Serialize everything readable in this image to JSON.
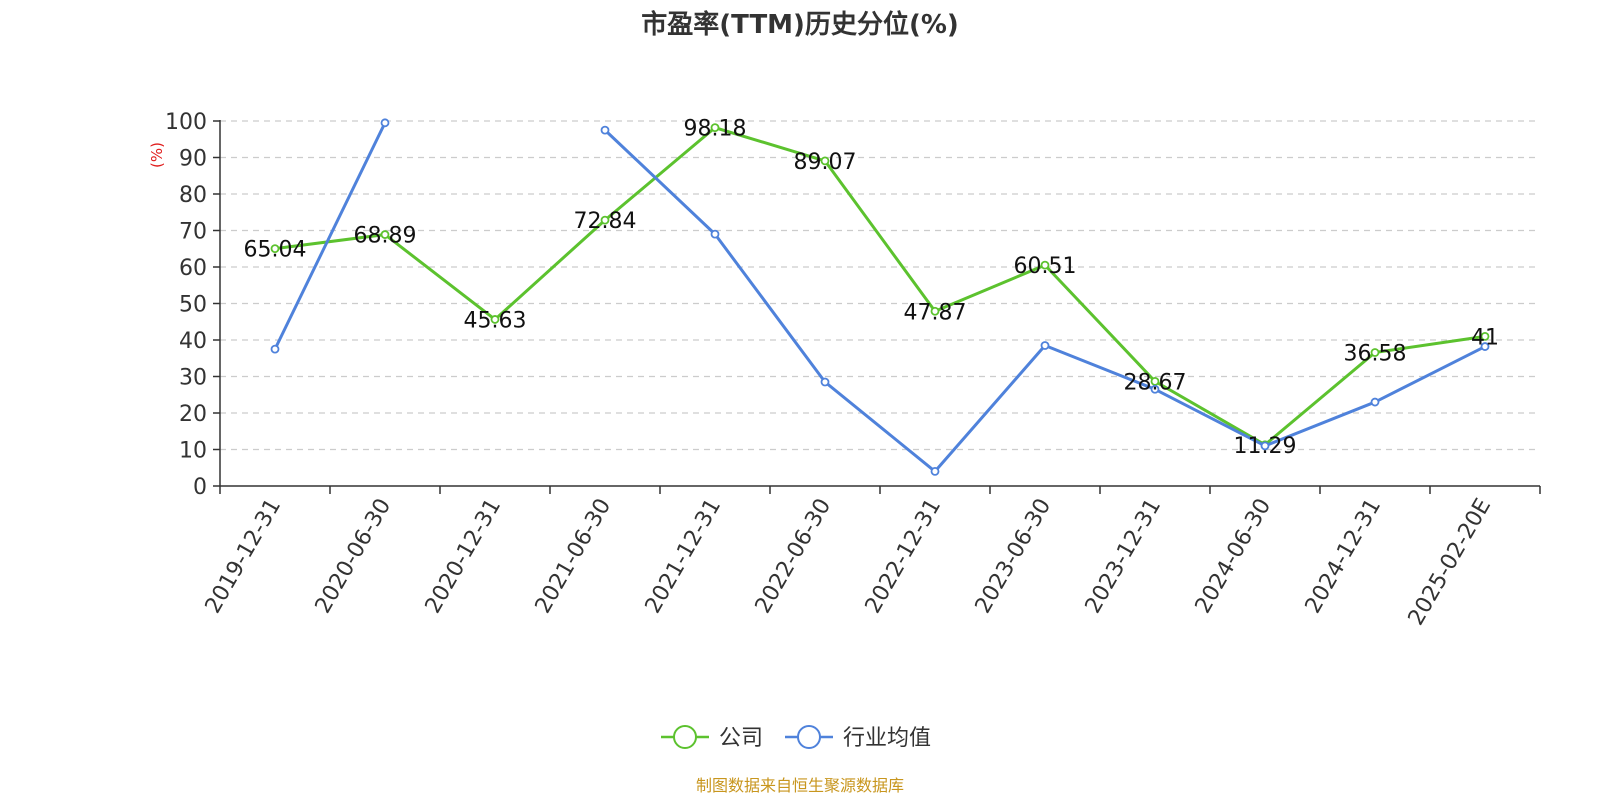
{
  "chart_data": {
    "type": "line",
    "title": "市盈率(TTM)历史分位(%)",
    "ylabel": "(%)",
    "ylim": [
      0,
      100
    ],
    "yticks": [
      0,
      10,
      20,
      30,
      40,
      50,
      60,
      70,
      80,
      90,
      100
    ],
    "grid": true,
    "legend_position": "bottom-center",
    "categories": [
      "2019-12-31",
      "2020-06-30",
      "2020-12-31",
      "2021-06-30",
      "2021-12-31",
      "2022-06-30",
      "2022-12-31",
      "2023-06-30",
      "2023-12-31",
      "2024-06-30",
      "2024-12-31",
      "2025-02-20E"
    ],
    "series": [
      {
        "name": "公司",
        "color": "#5cc22e",
        "values": [
          65.04,
          68.89,
          45.63,
          72.84,
          98.18,
          89.07,
          47.87,
          60.51,
          28.67,
          11.29,
          36.58,
          41
        ],
        "labels": [
          "65.04",
          "68.89",
          "45.63",
          "72.84",
          "98.18",
          "89.07",
          "47.87",
          "60.51",
          "28.67",
          "11.29",
          "36.58",
          "41"
        ]
      },
      {
        "name": "行业均值",
        "color": "#4f82db",
        "values": [
          37.5,
          99.5,
          null,
          97.5,
          69,
          28.5,
          4,
          38.5,
          26.5,
          11,
          23,
          38.2
        ]
      }
    ],
    "source": "制图数据来自恒生聚源数据库",
    "source_color": "#c8961e",
    "ylabel_color": "#e01c1c"
  }
}
